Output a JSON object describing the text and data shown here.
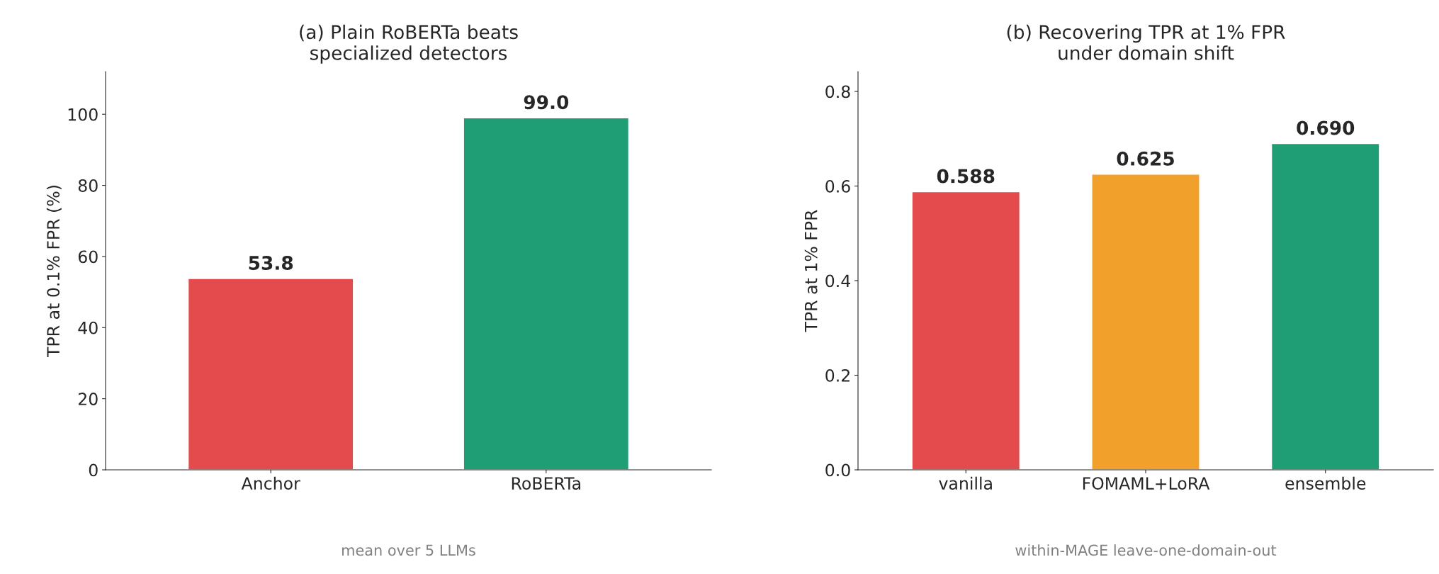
{
  "chart_data": [
    {
      "type": "bar",
      "title": "(a) Plain RoBERTa beats\nspecialized detectors",
      "ylabel": "TPR at 0.1% FPR (%)",
      "categories": [
        "Anchor",
        "RoBERTa"
      ],
      "values": [
        53.8,
        99.0
      ],
      "colors": [
        "#e34b4c",
        "#1f9e76"
      ],
      "value_labels": [
        "53.8",
        "99.0"
      ],
      "ylim": [
        0,
        112
      ],
      "yticks": [
        0,
        20,
        40,
        60,
        80,
        100
      ],
      "grid": false,
      "annotations": [
        "mean over 5 LLMs"
      ]
    },
    {
      "type": "bar",
      "title": "(b) Recovering TPR at 1% FPR\nunder domain shift",
      "ylabel": "TPR at 1% FPR",
      "categories": [
        "vanilla",
        "FOMAML+LoRA",
        "ensemble"
      ],
      "values": [
        0.588,
        0.625,
        0.69
      ],
      "colors": [
        "#e34b4c",
        "#f0a02b",
        "#1f9e76"
      ],
      "value_labels": [
        "0.588",
        "0.625",
        "0.690"
      ],
      "ylim": [
        0,
        0.842
      ],
      "yticks": [
        {
          "value": 0,
          "label": "0.0"
        },
        0.2,
        0.4,
        0.6,
        0.8
      ],
      "grid": false,
      "annotations": [
        "within-MAGE leave-one-domain-out"
      ]
    }
  ]
}
